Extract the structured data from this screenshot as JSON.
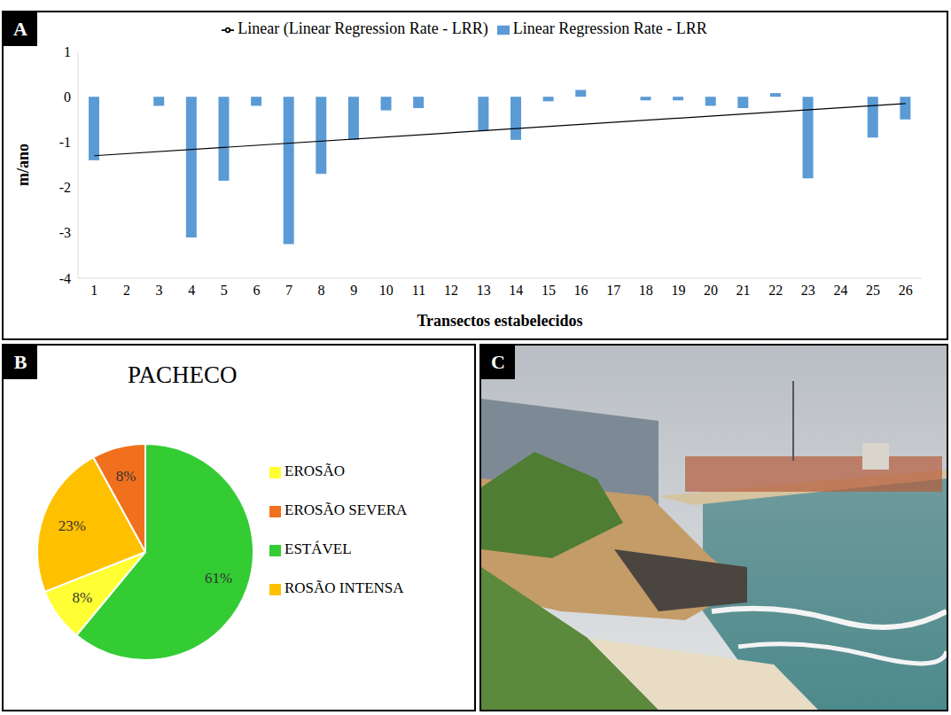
{
  "panels": [
    "A",
    "B",
    "C"
  ],
  "chart_data": [
    {
      "type": "bar",
      "categories": [
        "1",
        "2",
        "3",
        "4",
        "5",
        "6",
        "7",
        "8",
        "9",
        "10",
        "11",
        "12",
        "13",
        "14",
        "15",
        "16",
        "17",
        "18",
        "19",
        "20",
        "21",
        "22",
        "23",
        "24",
        "25",
        "26"
      ],
      "series": [
        {
          "name": "Linear Regression Rate - LRR",
          "type": "bar",
          "color": "#5b9bd5",
          "values": [
            -1.4,
            0,
            -0.2,
            -3.1,
            -1.85,
            -0.2,
            -3.25,
            -1.7,
            -0.95,
            -0.3,
            -0.25,
            0,
            -0.75,
            -0.95,
            -0.1,
            0.15,
            0,
            -0.08,
            -0.08,
            -0.2,
            -0.25,
            0.08,
            -1.8,
            0,
            -0.9,
            -0.5
          ]
        },
        {
          "name": "Linear (Linear Regression Rate - LRR)",
          "type": "line",
          "color": "#000000",
          "line_style": "solid",
          "values": [
            -1.3,
            null,
            null,
            null,
            null,
            null,
            null,
            null,
            null,
            null,
            null,
            null,
            null,
            null,
            null,
            null,
            null,
            null,
            null,
            null,
            null,
            null,
            null,
            null,
            null,
            -0.15
          ]
        }
      ],
      "y_label": "m/ano",
      "x_label": "Transectos estabelecidos",
      "ylim": [
        -4,
        1
      ],
      "yticks": [
        -4,
        -3,
        -2,
        -1,
        0,
        1
      ],
      "legend": "top",
      "grid": false
    },
    {
      "type": "pie",
      "title": "PACHECO",
      "categories": [
        "ESTÁVEL",
        "EROSÃO",
        "ROSÃO INTENSA",
        "EROSÃO SEVERA"
      ],
      "values": [
        61,
        8,
        23,
        8
      ],
      "value_labels": [
        "61%",
        "8%",
        "23%",
        "8%"
      ],
      "colors": [
        "#33cc33",
        "#ffff33",
        "#ffc000",
        "#f0701e"
      ],
      "data_labels": true,
      "legend": "right"
    }
  ]
}
